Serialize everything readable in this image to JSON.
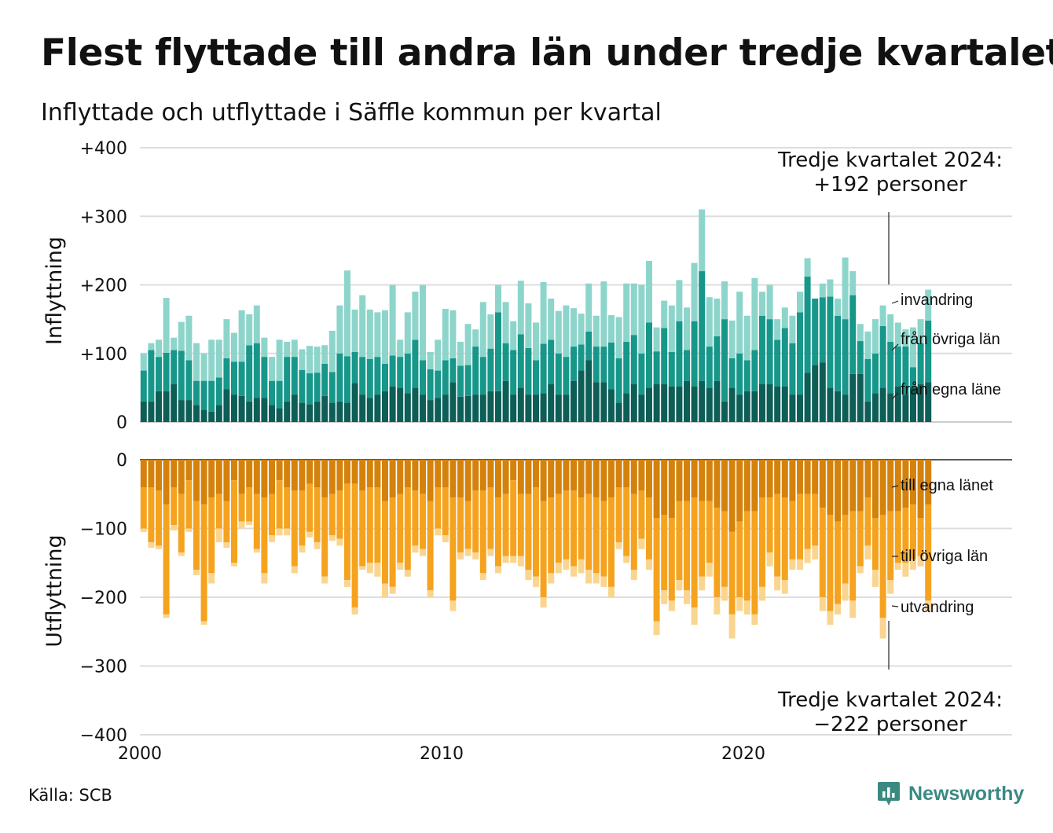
{
  "title": "Flest flyttade till andra län under tredje kvartalet",
  "subtitle": "Inflyttade och utflyttade i Säffle kommun per kvartal",
  "source": "Källa: SCB",
  "brand": "Newsworthy",
  "colors": {
    "in_egna": "#0d5e57",
    "in_ovriga": "#16978a",
    "in_invandring": "#8dd5cb",
    "ut_egna": "#d4820c",
    "ut_ovriga": "#f5a31f",
    "ut_utvandring": "#fad590",
    "grid": "#dddddd",
    "brand_icon": "#3a8a82"
  },
  "annotations": {
    "top_line1": "Tredje kvartalet 2024:",
    "top_line2": "+192 personer",
    "bottom_line1": "Tredje kvartalet 2024:",
    "bottom_line2": "−222 personer"
  },
  "chart_data": {
    "type": "bar",
    "stacked": true,
    "grid": true,
    "legend": "right-edge direct labels",
    "x_start": 2000.0,
    "x_step": 0.25,
    "x_ticks": [
      2000,
      2010,
      2020
    ],
    "x_tick_labels": [
      "2000",
      "2010",
      "2020"
    ],
    "panels": [
      {
        "id": "inflyttning",
        "ylabel": "Inflyttning",
        "ylim": [
          0,
          400
        ],
        "y_ticks": [
          0,
          100,
          200,
          300,
          400
        ],
        "y_tick_labels": [
          "0",
          "+100",
          "+200",
          "+300",
          "+400"
        ],
        "series": [
          {
            "name": "från egna läne",
            "color_key": "in_egna",
            "values": [
              30,
              30,
              45,
              45,
              55,
              32,
              32,
              25,
              18,
              15,
              25,
              48,
              40,
              38,
              30,
              35,
              35,
              25,
              20,
              30,
              40,
              28,
              26,
              30,
              38,
              28,
              30,
              28,
              57,
              40,
              35,
              40,
              45,
              52,
              50,
              42,
              50,
              40,
              32,
              35,
              40,
              58,
              37,
              38,
              40,
              40,
              45,
              45,
              60,
              40,
              50,
              40,
              40,
              42,
              55,
              40,
              40,
              60,
              75,
              90,
              58,
              58,
              48,
              28,
              42,
              55,
              40,
              50,
              55,
              55,
              52,
              52,
              60,
              52,
              60,
              50,
              60,
              30,
              50,
              40,
              45,
              45,
              55,
              55,
              52,
              52,
              40,
              40,
              72,
              83,
              87,
              50,
              45,
              40,
              70,
              70,
              30,
              42,
              50,
              42,
              52,
              40,
              50,
              55,
              58
            ]
          },
          {
            "name": "från övriga län",
            "color_key": "in_ovriga",
            "values": [
              45,
              75,
              50,
              56,
              50,
              72,
              58,
              35,
              42,
              45,
              40,
              45,
              48,
              50,
              82,
              80,
              60,
              35,
              40,
              65,
              55,
              48,
              45,
              42,
              47,
              45,
              70,
              68,
              45,
              55,
              57,
              55,
              40,
              45,
              45,
              58,
              70,
              50,
              45,
              40,
              50,
              35,
              45,
              45,
              70,
              55,
              62,
              115,
              55,
              65,
              78,
              68,
              50,
              72,
              65,
              60,
              55,
              50,
              38,
              42,
              52,
              52,
              68,
              65,
              75,
              72,
              60,
              95,
              48,
              82,
              50,
              95,
              45,
              95,
              160,
              60,
              65,
              120,
              43,
              60,
              45,
              60,
              100,
              95,
              68,
              85,
              75,
              120,
              140,
              97,
              95,
              133,
              110,
              110,
              115,
              48,
              62,
              58,
              90,
              75,
              58,
              70,
              30,
              60,
              90
            ]
          },
          {
            "name": "invandring",
            "color_key": "in_invandring",
            "values": [
              25,
              10,
              25,
              80,
              18,
              42,
              65,
              55,
              40,
              60,
              55,
              57,
              42,
              75,
              45,
              55,
              28,
              35,
              60,
              22,
              25,
              30,
              40,
              38,
              27,
              60,
              70,
              125,
              62,
              90,
              72,
              65,
              78,
              103,
              25,
              60,
              70,
              110,
              25,
              45,
              75,
              70,
              35,
              60,
              25,
              80,
              50,
              40,
              60,
              42,
              78,
              65,
              55,
              90,
              60,
              62,
              75,
              56,
              45,
              70,
              45,
              95,
              40,
              60,
              85,
              75,
              100,
              90,
              35,
              40,
              68,
              60,
              62,
              85,
              90,
              72,
              55,
              55,
              55,
              90,
              65,
              105,
              35,
              50,
              30,
              30,
              40,
              30,
              27,
              0,
              20,
              25,
              25,
              90,
              35,
              25,
              40,
              50,
              30,
              40,
              35,
              25,
              58,
              35,
              45
            ]
          }
        ]
      },
      {
        "id": "utflyttning",
        "ylabel": "Utflyttning",
        "ylim": [
          -400,
          0
        ],
        "y_ticks": [
          0,
          -100,
          -200,
          -300,
          -400
        ],
        "y_tick_labels": [
          "0",
          "−100",
          "−200",
          "−300",
          "−400"
        ],
        "series": [
          {
            "name": "till egna länet",
            "color_key": "ut_egna",
            "values": [
              -40,
              -40,
              -45,
              -65,
              -40,
              -50,
              -30,
              -60,
              -65,
              -55,
              -50,
              -60,
              -30,
              -50,
              -40,
              -50,
              -55,
              -50,
              -30,
              -40,
              -45,
              -45,
              -35,
              -40,
              -55,
              -50,
              -45,
              -35,
              -35,
              -45,
              -40,
              -40,
              -60,
              -55,
              -50,
              -40,
              -45,
              -50,
              -60,
              -40,
              -40,
              -55,
              -55,
              -60,
              -45,
              -45,
              -40,
              -55,
              -50,
              -30,
              -50,
              -50,
              -40,
              -60,
              -55,
              -50,
              -45,
              -45,
              -55,
              -50,
              -55,
              -60,
              -55,
              -40,
              -40,
              -50,
              -45,
              -55,
              -85,
              -80,
              -85,
              -60,
              -60,
              -55,
              -60,
              -60,
              -70,
              -75,
              -105,
              -90,
              -75,
              -75,
              -55,
              -55,
              -50,
              -55,
              -60,
              -50,
              -50,
              -50,
              -70,
              -80,
              -90,
              -80,
              -75,
              -75,
              -55,
              -85,
              -80,
              -75,
              -75,
              -70,
              -65,
              -85,
              -65
            ]
          },
          {
            "name": "till övriga län",
            "color_key": "ut_ovriga",
            "values": [
              -60,
              -80,
              -80,
              -160,
              -55,
              -85,
              -70,
              -100,
              -170,
              -110,
              -50,
              -60,
              -120,
              -40,
              -50,
              -80,
              -110,
              -60,
              -70,
              -60,
              -110,
              -80,
              -70,
              -80,
              -115,
              -60,
              -70,
              -140,
              -180,
              -110,
              -110,
              -110,
              -120,
              -130,
              -100,
              -120,
              -80,
              -80,
              -130,
              -60,
              -70,
              -150,
              -80,
              -70,
              -90,
              -120,
              -90,
              -100,
              -90,
              -110,
              -90,
              -110,
              -130,
              -140,
              -110,
              -100,
              -100,
              -110,
              -90,
              -110,
              -110,
              -110,
              -130,
              -80,
              -100,
              -110,
              -70,
              -90,
              -150,
              -110,
              -120,
              -115,
              -130,
              -160,
              -110,
              -90,
              -130,
              -110,
              -120,
              -110,
              -130,
              -150,
              -130,
              -80,
              -120,
              -120,
              -85,
              -95,
              -80,
              -75,
              -130,
              -140,
              -120,
              -100,
              -130,
              -80,
              -70,
              -75,
              -150,
              -100,
              -75,
              -80,
              -80,
              -55,
              -140
            ]
          },
          {
            "name": "utvandring",
            "color_key": "ut_utvandring",
            "values": [
              -5,
              -8,
              -5,
              -5,
              -8,
              -5,
              -5,
              -8,
              -5,
              -15,
              -20,
              -8,
              -5,
              -10,
              -5,
              -5,
              -15,
              -10,
              -10,
              -10,
              -10,
              -10,
              -8,
              -10,
              -10,
              -8,
              -10,
              -10,
              -10,
              -5,
              -15,
              -20,
              -20,
              -10,
              -10,
              -10,
              -10,
              -10,
              -10,
              -10,
              -10,
              -15,
              -10,
              -10,
              -10,
              -10,
              -10,
              -10,
              -10,
              -10,
              -15,
              -15,
              -15,
              -15,
              -15,
              -15,
              -15,
              -15,
              -20,
              -20,
              -15,
              -15,
              -15,
              -10,
              -10,
              -15,
              -15,
              -15,
              -20,
              -20,
              -15,
              -15,
              -20,
              -25,
              -20,
              -20,
              -25,
              -20,
              -35,
              -20,
              -20,
              -15,
              -20,
              -20,
              -20,
              -20,
              -15,
              -15,
              -20,
              -20,
              -20,
              -20,
              -15,
              -25,
              -25,
              -10,
              -20,
              -25,
              -30,
              -20,
              -10,
              -20,
              -15,
              -15,
              -15
            ]
          }
        ]
      }
    ]
  }
}
